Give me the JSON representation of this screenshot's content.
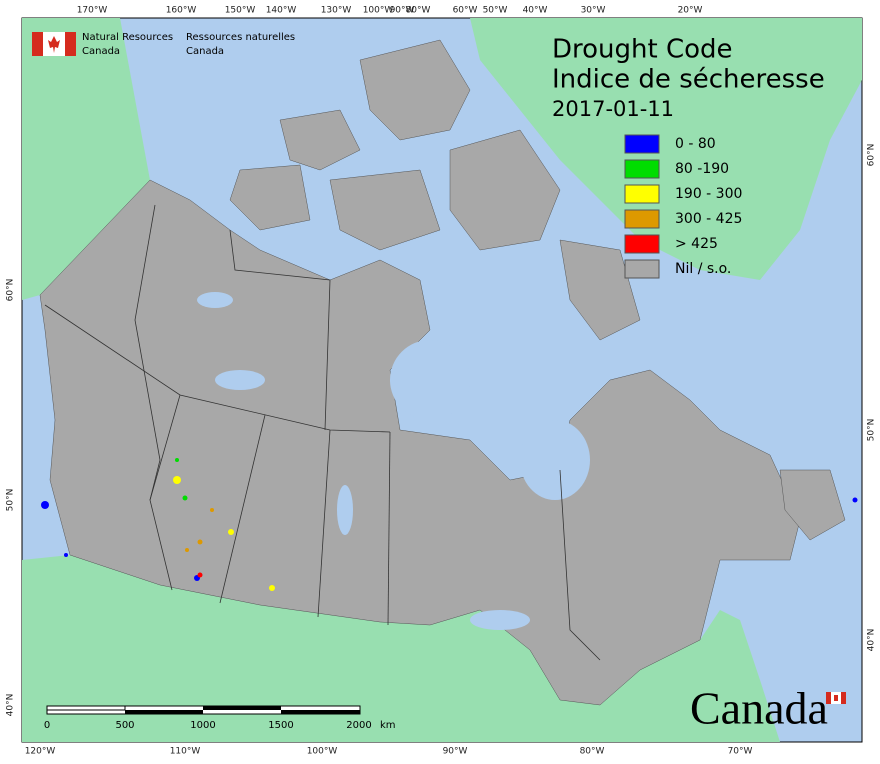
{
  "header": {
    "org_en": [
      "Natural Resources",
      "Canada"
    ],
    "org_fr": [
      "Ressources naturelles",
      "Canada"
    ]
  },
  "title": [
    "Drought Code",
    "Indice de sécheresse"
  ],
  "date": "2017-01-11",
  "legend": [
    {
      "label": "0 - 80",
      "color": "#0000ff"
    },
    {
      "label": "80 -190",
      "color": "#00dd00"
    },
    {
      "label": "190 - 300",
      "color": "#ffff00"
    },
    {
      "label": "300 - 425",
      "color": "#dd9900"
    },
    {
      "label": "> 425",
      "color": "#ff0000"
    },
    {
      "label": "Nil / s.o.",
      "color": "#a8a8a8"
    }
  ],
  "top_labels": [
    "170°W",
    "160°W",
    "150°W",
    "140°W",
    "130°W",
    "100°W",
    "90°W",
    "80°W",
    "60°W",
    "50°W",
    "40°W",
    "30°W",
    "20°W"
  ],
  "bottom_labels": [
    "120°W",
    "110°W",
    "100°W",
    "90°W",
    "80°W",
    "70°W"
  ],
  "left_labels": [
    "60°N",
    "50°N",
    "40°N"
  ],
  "right_labels": [
    "60°N",
    "50°N",
    "40°N"
  ],
  "scale": {
    "labels": [
      "0",
      "500",
      "1000",
      "1500",
      "2000"
    ],
    "unit": "km"
  },
  "wordmark": "Canada"
}
